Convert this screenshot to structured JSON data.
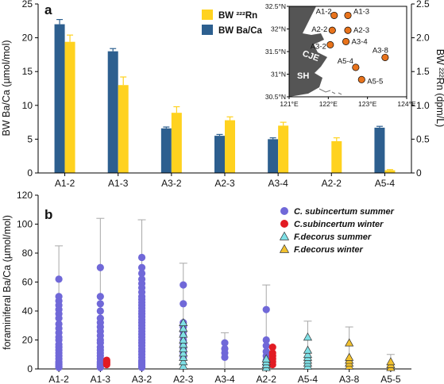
{
  "chart_data": [
    {
      "panel": "a",
      "type": "bar",
      "categories": [
        "A1-2",
        "A1-3",
        "A3-2",
        "A2-3",
        "A3-4",
        "A2-2",
        "A5-4"
      ],
      "ylabel_left": "BW Ba/Ca (µmol/mol)",
      "ylabel_right": "BW ²²²Rn (dpm/L)",
      "ylim_left": [
        0,
        25
      ],
      "ylim_right": [
        0,
        2.5
      ],
      "yticks_left": [
        "0",
        "5",
        "10",
        "15",
        "20",
        "25"
      ],
      "yticks_right": [
        "0",
        "0.5",
        "1.0",
        "1.5",
        "2.0",
        "2.5"
      ],
      "legend": {
        "position": "top-right",
        "entries": [
          "BW ²²²Rn",
          "BW Ba/Ca"
        ]
      },
      "colors": {
        "ba": "#2d5f8f",
        "rn": "#ffd21f"
      },
      "series": [
        {
          "name": "BW Ba/Ca",
          "axis": "left",
          "values": [
            22.0,
            18.0,
            6.6,
            5.5,
            5.0,
            null,
            6.7
          ],
          "errors": [
            0.7,
            0.4,
            0.2,
            0.2,
            0.2,
            null,
            0.2
          ]
        },
        {
          "name": "BW ²²²Rn",
          "axis": "right",
          "values": [
            1.94,
            1.3,
            0.89,
            0.78,
            0.7,
            0.47,
            0.04
          ],
          "errors": [
            0.1,
            0.12,
            0.09,
            0.05,
            0.05,
            0.05,
            0.01
          ]
        }
      ],
      "inset_map": {
        "lat_ticks": [
          "32.5°N",
          "32°N",
          "31.5°N",
          "31°N",
          "30.5°N"
        ],
        "lon_ticks": [
          "121°E",
          "122°E",
          "123°E",
          "124°E"
        ],
        "region_labels": [
          "CJE",
          "SH"
        ],
        "stations": [
          {
            "name": "A1-2",
            "lon": 122.15,
            "lat": 32.3
          },
          {
            "name": "A1-3",
            "lon": 122.5,
            "lat": 32.3
          },
          {
            "name": "A2-2",
            "lon": 122.1,
            "lat": 31.97
          },
          {
            "name": "A2-3",
            "lon": 122.5,
            "lat": 31.97
          },
          {
            "name": "A3-2",
            "lon": 122.05,
            "lat": 31.65
          },
          {
            "name": "A3-4",
            "lon": 122.45,
            "lat": 31.72
          },
          {
            "name": "A3-8",
            "lon": 123.45,
            "lat": 31.37
          },
          {
            "name": "A5-4",
            "lon": 122.7,
            "lat": 31.15
          },
          {
            "name": "A5-5",
            "lon": 122.85,
            "lat": 30.88
          }
        ]
      }
    },
    {
      "panel": "b",
      "type": "scatter",
      "categories": [
        "A1-2",
        "A1-3",
        "A3-2",
        "A2-3",
        "A3-4",
        "A2-2",
        "A5-4",
        "A3-8",
        "A5-5"
      ],
      "ylabel": "foraminiferal Ba/Ca (µmol/mol)",
      "ylim": [
        0,
        120
      ],
      "yticks": [
        "0",
        "20",
        "40",
        "60",
        "80",
        "100",
        "120"
      ],
      "legend": {
        "position": "top-right"
      },
      "series": [
        {
          "name": "C. subincertum summer",
          "color": "#7068d8",
          "marker": "circle",
          "points": {
            "A1-2": [
              1,
              2,
              3,
              4,
              5,
              7,
              9,
              11,
              13,
              15,
              17,
              20,
              22,
              25,
              28,
              31,
              35,
              38,
              41,
              44,
              47,
              50,
              62
            ],
            "A1-3": [
              1,
              2,
              3,
              4,
              5,
              7,
              9,
              11,
              13,
              15,
              18,
              20,
              23,
              26,
              29,
              32,
              35,
              40,
              45,
              50,
              70
            ],
            "A3-2": [
              1,
              2,
              3,
              4,
              5,
              6,
              8,
              10,
              12,
              14,
              16,
              18,
              20,
              22,
              24,
              26,
              28,
              30,
              32,
              34,
              36,
              38,
              40,
              42,
              44,
              46,
              48,
              50,
              53,
              56,
              59,
              62,
              66,
              70,
              77
            ],
            "A2-3": [
              8,
              11,
              14,
              17,
              20,
              23,
              26,
              29,
              32,
              45,
              58
            ],
            "A3-4": [
              8,
              11,
              14,
              18
            ],
            "A2-2": [
              3,
              6,
              9,
              12,
              16,
              20,
              41
            ]
          }
        },
        {
          "name": "C.subincertum  winter",
          "color": "#e21b23",
          "marker": "circle",
          "points": {
            "A1-3": [
              3,
              4,
              5,
              6
            ],
            "A2-2": [
              3,
              5,
              7,
              9,
              11,
              15
            ]
          }
        },
        {
          "name": "F.decorus summer",
          "color": "#7fe0e6",
          "marker": "triangle",
          "points": {
            "A2-3": [
              2,
              5,
              8,
              11,
              14,
              17,
              20,
              24,
              28,
              32
            ],
            "A2-2": [
              1,
              3,
              5,
              7
            ],
            "A5-4": [
              2,
              4,
              6,
              8,
              10,
              13,
              22
            ]
          }
        },
        {
          "name": "F.decorus winter",
          "color": "#f2c12e",
          "marker": "triangle",
          "points": {
            "A3-8": [
              2,
              4,
              6,
              8,
              18
            ],
            "A5-5": [
              1,
              3,
              5
            ]
          }
        }
      ],
      "errorbar_max": {
        "A1-2": 85,
        "A1-3": 104,
        "A3-2": 103,
        "A2-3": 73,
        "A3-4": 25,
        "A2-2": 58,
        "A5-4": 33,
        "A3-8": 29,
        "A5-5": 10
      }
    }
  ]
}
